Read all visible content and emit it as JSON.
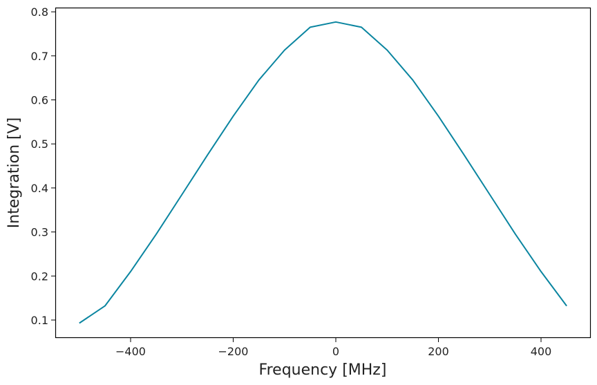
{
  "chart_data": {
    "type": "line",
    "title": "",
    "xlabel": "Frequency [MHz]",
    "ylabel": "Integration [V]",
    "xlim": [
      -520,
      500
    ],
    "ylim": [
      0.06,
      0.81
    ],
    "grid": false,
    "legend": null,
    "x_ticks": [
      -400,
      -200,
      0,
      200,
      400
    ],
    "x_tick_labels": [
      "−400",
      "−200",
      "0",
      "200",
      "400"
    ],
    "y_ticks": [
      0.1,
      0.2,
      0.3,
      0.4,
      0.5,
      0.6,
      0.7,
      0.8
    ],
    "y_tick_labels": [
      "0.1",
      "0.2",
      "0.3",
      "0.4",
      "0.5",
      "0.6",
      "0.7",
      "0.8"
    ],
    "series": [
      {
        "name": "Integration",
        "color": "#0a85a0",
        "x": [
          -500,
          -450,
          -400,
          -350,
          -300,
          -250,
          -200,
          -150,
          -100,
          -50,
          0,
          50,
          100,
          150,
          200,
          250,
          300,
          350,
          400,
          450
        ],
        "values": [
          0.093,
          0.132,
          0.21,
          0.295,
          0.385,
          0.475,
          0.563,
          0.645,
          0.713,
          0.765,
          0.777,
          0.765,
          0.713,
          0.645,
          0.563,
          0.475,
          0.385,
          0.295,
          0.21,
          0.132
        ]
      }
    ]
  },
  "labels": {
    "xlabel": "Frequency [MHz]",
    "ylabel": "Integration [V]"
  }
}
